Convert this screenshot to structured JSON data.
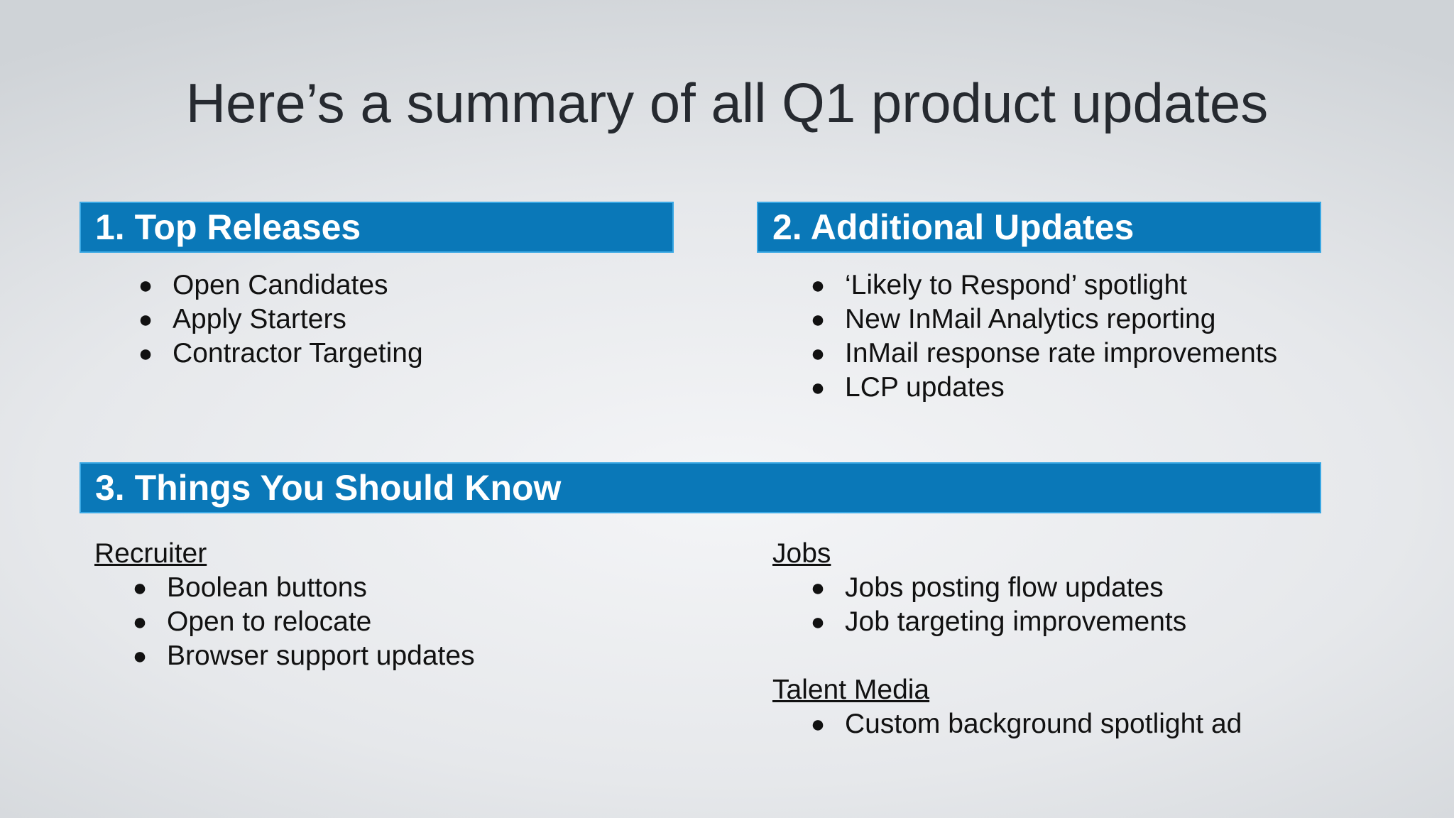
{
  "title": "Here’s a summary of all Q1 product updates",
  "bullet_symbol": "●",
  "sections": {
    "top_releases": {
      "heading": "1. Top Releases",
      "items": [
        "Open Candidates",
        "Apply Starters",
        "Contractor Targeting"
      ]
    },
    "additional_updates": {
      "heading": "2. Additional Updates",
      "items": [
        "‘Likely to Respond’ spotlight",
        "New InMail Analytics reporting",
        "InMail response rate improvements",
        "LCP updates"
      ]
    },
    "things_to_know": {
      "heading": "3. Things You Should Know",
      "recruiter": {
        "label": "Recruiter",
        "items": [
          "Boolean buttons",
          "Open to relocate",
          "Browser support updates"
        ]
      },
      "jobs": {
        "label": "Jobs",
        "items": [
          "Jobs posting flow updates",
          "Job targeting improvements"
        ]
      },
      "talent_media": {
        "label": "Talent Media",
        "items": [
          "Custom background spotlight ad"
        ]
      }
    }
  },
  "colors": {
    "header_bar": "#0a78b8",
    "header_border": "#3aa8e4",
    "title_text": "#262a30"
  }
}
